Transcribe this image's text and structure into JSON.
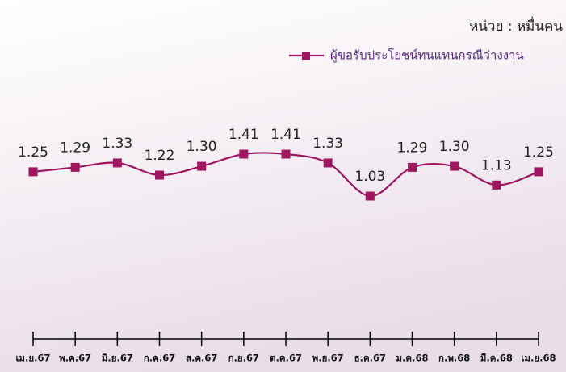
{
  "chart_data": {
    "type": "line",
    "unit_note": "หน่วย : หมื่นคน",
    "categories": [
      "เม.ย.67",
      "พ.ค.67",
      "มิ.ย.67",
      "ก.ค.67",
      "ส.ค.67",
      "ก.ย.67",
      "ต.ค.67",
      "พ.ย.67",
      "ธ.ค.67",
      "ม.ค.68",
      "ก.พ.68",
      "มี.ค.68",
      "เม.ย.68"
    ],
    "series": [
      {
        "name": "ผู้ขอรับประโยชน์ทนแทนกรณีว่างงาน",
        "color": "#a0155f",
        "values": [
          1.25,
          1.29,
          1.33,
          1.22,
          1.3,
          1.41,
          1.41,
          1.33,
          1.03,
          1.29,
          1.3,
          1.13,
          1.25
        ],
        "value_labels": [
          "1.25",
          "1.29",
          "1.33",
          "1.22",
          "1.30",
          "1.41",
          "1.41",
          "1.33",
          "1.03",
          "1.29",
          "1.30",
          "1.13",
          "1.25"
        ]
      }
    ]
  }
}
